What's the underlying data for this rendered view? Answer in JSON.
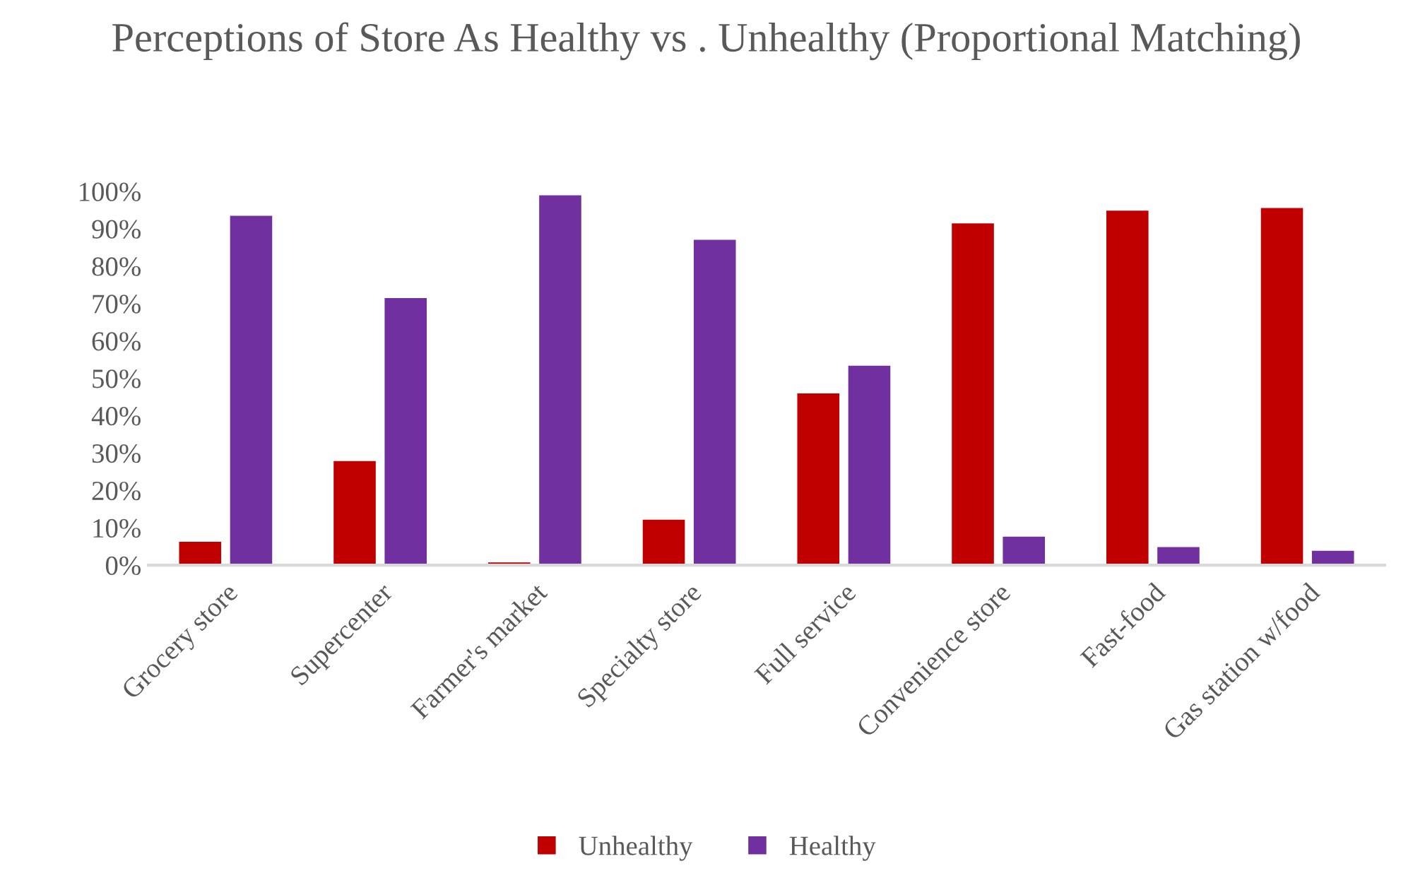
{
  "chart_data": {
    "type": "bar",
    "title": "Perceptions of Store As Healthy vs . Unhealthy (Proportional Matching)",
    "categories": [
      "Grocery store",
      "Supercenter",
      "Farmer's market",
      "Specialty store",
      "Full service",
      "Convenience store",
      "Fast-food",
      "Gas station w/food"
    ],
    "series": [
      {
        "name": "Unhealthy",
        "color": "#c00000",
        "values": [
          6.4,
          28,
          0.9,
          12.3,
          46.1,
          91.6,
          95,
          95.7
        ]
      },
      {
        "name": "Healthy",
        "color": "#7030a0",
        "values": [
          93.6,
          71.6,
          99.1,
          87.2,
          53.5,
          7.8,
          5,
          4
        ]
      }
    ],
    "ylim": [
      0,
      100
    ],
    "yticks": [
      {
        "value": 0,
        "label": "0%"
      },
      {
        "value": 10,
        "label": "10%"
      },
      {
        "value": 20,
        "label": "20%"
      },
      {
        "value": 30,
        "label": "30%"
      },
      {
        "value": 40,
        "label": "40%"
      },
      {
        "value": 50,
        "label": "50%"
      },
      {
        "value": 60,
        "label": "60%"
      },
      {
        "value": 70,
        "label": "70%"
      },
      {
        "value": 80,
        "label": "80%"
      },
      {
        "value": 90,
        "label": "90%"
      },
      {
        "value": 100,
        "label": "100%"
      }
    ],
    "grid": false,
    "legend": "bottom"
  }
}
